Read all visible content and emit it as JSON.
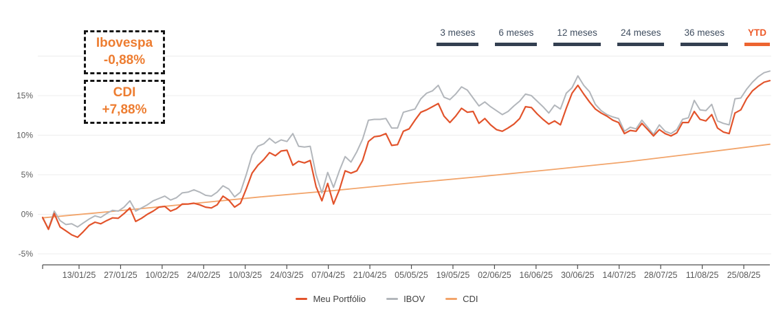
{
  "overlays": {
    "ibovespa_box": {
      "title": "Ibovespa",
      "value": "-0,88%"
    },
    "cdi_box": {
      "title": "CDI",
      "value": "+7,88%"
    }
  },
  "tabs": [
    {
      "label": "3 meses",
      "active": false
    },
    {
      "label": "6 meses",
      "active": false
    },
    {
      "label": "12 meses",
      "active": false
    },
    {
      "label": "24 meses",
      "active": false
    },
    {
      "label": "36 meses",
      "active": false
    },
    {
      "label": "YTD",
      "active": true
    }
  ],
  "legend": [
    {
      "label": "Meu Portfólio",
      "color": "#E2532B"
    },
    {
      "label": "IBOV",
      "color": "#B2B6BB"
    },
    {
      "label": "CDI",
      "color": "#F2A46A"
    }
  ],
  "colors": {
    "portfolio_line": "#E2532B",
    "ibov_line": "#B2B6BB",
    "cdi_line": "#F2A46A",
    "accent_orange": "#ED7D31",
    "tab_text": "#3F4D5F",
    "tab_underline": "#333F50",
    "tab_active": "#ED6430",
    "axis_text": "#595959",
    "gridline": "#ECECEC",
    "axis_line": "#4D4D4D"
  },
  "chart_data": {
    "type": "line",
    "title": "",
    "xlabel": "",
    "ylabel": "",
    "ylim": [
      -6.5,
      20
    ],
    "grid": true,
    "legend_position": "bottom",
    "y_ticks": [
      {
        "label": "",
        "value": 20
      },
      {
        "label": "15%",
        "value": 15
      },
      {
        "label": "10%",
        "value": 10
      },
      {
        "label": "5%",
        "value": 5
      },
      {
        "label": "0%",
        "value": 0
      },
      {
        "label": "-5%",
        "value": -5
      }
    ],
    "x_tick_labels": [
      "13/01/25",
      "27/01/25",
      "10/02/25",
      "24/02/25",
      "10/03/25",
      "24/03/25",
      "07/04/25",
      "21/04/25",
      "05/05/25",
      "19/05/25",
      "02/06/25",
      "16/06/25",
      "30/06/25",
      "14/07/25",
      "28/07/25",
      "11/08/25",
      "25/08/25"
    ],
    "series": [
      {
        "name": "Meu Portfólio",
        "color": "#E2532B",
        "width": 2.2,
        "values": [
          -0.4,
          -1.9,
          0.1,
          -1.6,
          -2.1,
          -2.6,
          -2.9,
          -2.2,
          -1.4,
          -1.0,
          -1.2,
          -0.8,
          -0.45,
          -0.5,
          0.1,
          0.8,
          -0.9,
          -0.5,
          0.0,
          0.4,
          0.9,
          1.0,
          0.4,
          0.7,
          1.3,
          1.3,
          1.4,
          1.2,
          0.9,
          0.8,
          1.2,
          2.3,
          1.8,
          0.9,
          1.4,
          3.2,
          5.2,
          6.2,
          6.9,
          7.8,
          7.4,
          8.0,
          8.1,
          6.2,
          6.7,
          6.5,
          6.8,
          3.5,
          1.7,
          3.9,
          1.3,
          3.1,
          5.5,
          5.2,
          5.5,
          6.8,
          9.2,
          9.8,
          9.9,
          10.2,
          8.7,
          8.8,
          10.5,
          10.8,
          11.9,
          12.9,
          13.2,
          13.6,
          14.0,
          12.4,
          11.6,
          12.4,
          13.4,
          12.9,
          13.0,
          11.5,
          12.1,
          11.3,
          10.7,
          10.5,
          10.9,
          11.4,
          12.1,
          13.6,
          13.5,
          12.7,
          12.0,
          11.4,
          11.8,
          11.3,
          13.4,
          15.3,
          16.3,
          15.2,
          14.2,
          13.3,
          12.8,
          12.4,
          11.9,
          11.6,
          10.2,
          10.6,
          10.5,
          11.5,
          10.7,
          9.9,
          10.7,
          10.2,
          9.9,
          10.3,
          11.6,
          11.6,
          13.0,
          12.0,
          11.8,
          12.6,
          10.9,
          10.4,
          10.2,
          12.8,
          13.2,
          14.6,
          15.6,
          16.2,
          16.7,
          16.9
        ]
      },
      {
        "name": "IBOV",
        "color": "#B2B6BB",
        "width": 2,
        "values": [
          -0.5,
          -1.8,
          0.4,
          -0.8,
          -1.3,
          -1.2,
          -1.6,
          -1.1,
          -0.6,
          -0.2,
          -0.4,
          0.1,
          0.5,
          0.4,
          0.9,
          1.7,
          0.4,
          0.8,
          1.2,
          1.7,
          2.0,
          2.3,
          1.8,
          2.1,
          2.7,
          2.8,
          3.1,
          2.8,
          2.4,
          2.3,
          2.8,
          3.6,
          3.2,
          2.2,
          2.8,
          5.0,
          7.5,
          8.6,
          8.9,
          9.6,
          9.0,
          9.4,
          9.2,
          10.2,
          8.6,
          8.5,
          8.6,
          5.0,
          2.7,
          5.3,
          3.4,
          5.5,
          7.3,
          6.6,
          7.9,
          9.5,
          11.9,
          12.0,
          12.0,
          12.1,
          10.9,
          10.9,
          12.9,
          13.1,
          13.3,
          14.6,
          15.3,
          15.6,
          16.3,
          14.8,
          14.5,
          15.2,
          16.1,
          15.7,
          14.7,
          13.7,
          14.2,
          13.6,
          13.1,
          12.6,
          13.0,
          13.7,
          14.3,
          15.2,
          15.0,
          14.3,
          13.6,
          12.8,
          13.8,
          13.3,
          15.3,
          16.0,
          17.5,
          16.3,
          15.5,
          13.9,
          13.1,
          12.6,
          12.3,
          12.1,
          10.5,
          11.0,
          10.8,
          11.9,
          11.0,
          10.1,
          11.3,
          10.5,
          10.2,
          10.7,
          12.0,
          12.2,
          14.4,
          13.2,
          13.1,
          13.9,
          11.8,
          11.5,
          11.3,
          14.6,
          14.7,
          15.8,
          16.7,
          17.4,
          17.9,
          18.1
        ]
      },
      {
        "name": "CDI",
        "color": "#F2A46A",
        "width": 1.8,
        "values": [
          -0.45,
          0.4,
          1.3,
          2.2,
          3.0,
          3.9,
          4.75,
          5.65,
          6.6,
          7.7,
          8.85
        ]
      }
    ]
  }
}
